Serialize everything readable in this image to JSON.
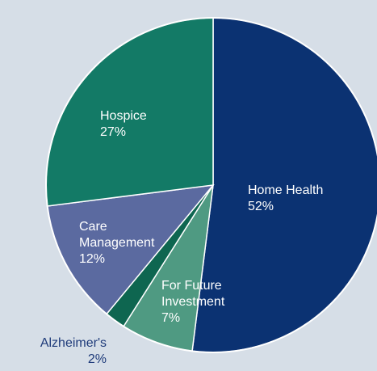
{
  "chart_data": {
    "type": "pie",
    "categories": [
      "Home Health",
      "For Future Investment",
      "Alzheimer's",
      "Care Management",
      "Hospice"
    ],
    "values": [
      52,
      7,
      2,
      12,
      27
    ],
    "value_labels": [
      "52%",
      "7%",
      "2%",
      "12%",
      "27%"
    ],
    "colors": [
      "#0b3272",
      "#4f9a82",
      "#0e6650",
      "#5b6aa0",
      "#137a66"
    ]
  }
}
